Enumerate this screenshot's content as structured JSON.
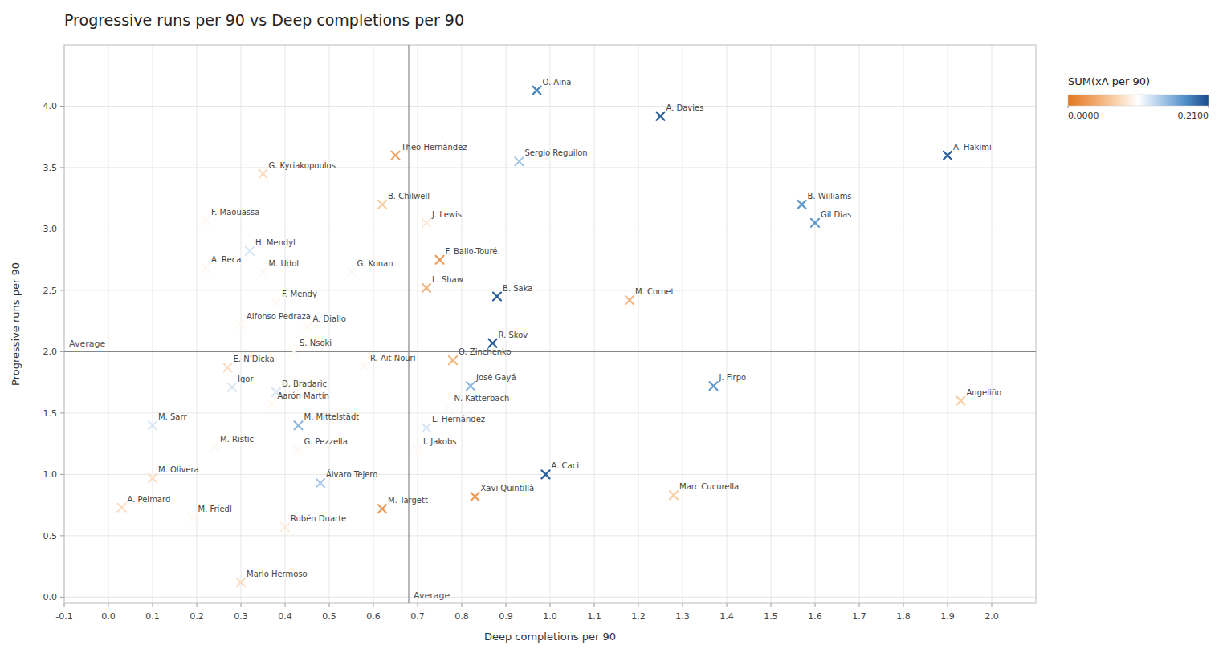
{
  "chart_data": {
    "type": "scatter",
    "title": "Progressive runs per 90 vs Deep completions per 90",
    "xlabel": "Deep completions per 90",
    "ylabel": "Progressive runs per 90",
    "grid": true,
    "marker": "x",
    "xlim": [
      -0.1,
      2.1
    ],
    "ylim": [
      -0.05,
      4.5
    ],
    "xticks": [
      -0.1,
      {
        "value": 0,
        "label": "0.0"
      },
      0.1,
      0.2,
      0.3,
      0.4,
      0.5,
      0.6,
      0.7,
      0.8,
      0.9,
      {
        "value": 1,
        "label": "1.0"
      },
      1.1,
      1.2,
      1.3,
      1.4,
      1.5,
      1.6,
      1.7,
      1.8,
      1.9,
      {
        "value": 2,
        "label": "2.0"
      }
    ],
    "yticks": [
      {
        "value": 0,
        "label": "0.0"
      },
      0.5,
      {
        "value": 1,
        "label": "1.0"
      },
      1.5,
      {
        "value": 2,
        "label": "2.0"
      },
      2.5,
      {
        "value": 3,
        "label": "3.0"
      },
      3.5,
      {
        "value": 4,
        "label": "4.0"
      }
    ],
    "averages": {
      "x": 0.68,
      "y": 2.0,
      "label": "Average"
    },
    "colorbar": {
      "title": "SUM(xA per 90)",
      "range": [
        0.0,
        0.21
      ],
      "ticks": [
        {
          "value": 0.0,
          "label": "0.0000"
        },
        {
          "value": 0.21,
          "label": "0.2100"
        }
      ],
      "colormap": [
        "#e07820",
        "#f0a060",
        "#f8d0a8",
        "#ffffff",
        "#a8c8e8",
        "#5090c8",
        "#1a4a8a"
      ]
    },
    "annotations": [
      "O. Aina",
      "A. Davies",
      "Theo Hernández",
      "Sergio Reguilon",
      "A. Hakimi",
      "G. Kyriakopoulos",
      "B. Chilwell",
      "B. Williams",
      "Gil Dias",
      "F. Maouassa",
      "J. Lewis",
      "H. Mendyl",
      "F. Ballo-Touré",
      "A. Reca",
      "M. Udol",
      "G. Konan",
      "L. Shaw",
      "B. Saka",
      "M. Cornet",
      "F. Mendy",
      "Alfonso Pedraza",
      "A. Diallo",
      "R. Skov",
      "S. Nsoki",
      "O. Zinchenko",
      "E. N’Dicka",
      "R. Aït Nouri",
      "José Gayá",
      "Igor",
      "D. Bradaric",
      "J. Firpo",
      "N. Katterbach",
      "Aarón Martín",
      "M. Sarr",
      "M. Mittelstädt",
      "L. Hernández",
      "M. Ristic",
      "G. Pezzella",
      "I. Jakobs",
      "Angeliño",
      "A. Caci",
      "M. Olivera",
      "Álvaro Tejero",
      "Xavi Quintillà",
      "Marc Cucurella",
      "A. Pelmard",
      "M. Friedl",
      "M. Targett",
      "Rubén Duarte",
      "Mario Hermoso"
    ],
    "x": [
      0.97,
      1.25,
      0.65,
      0.93,
      1.9,
      0.35,
      0.62,
      1.57,
      1.6,
      0.22,
      0.72,
      0.32,
      0.75,
      0.22,
      0.35,
      0.55,
      0.72,
      0.88,
      1.18,
      0.38,
      0.3,
      0.45,
      0.87,
      0.42,
      0.78,
      0.27,
      0.58,
      0.82,
      0.28,
      0.38,
      1.37,
      0.77,
      0.37,
      0.1,
      0.43,
      0.72,
      0.24,
      0.43,
      0.7,
      1.93,
      0.99,
      0.1,
      0.48,
      0.83,
      1.28,
      0.03,
      0.19,
      0.62,
      0.4,
      0.3
    ],
    "values": [
      4.13,
      3.92,
      3.6,
      3.55,
      3.6,
      3.45,
      3.2,
      3.2,
      3.05,
      3.07,
      3.05,
      2.82,
      2.75,
      2.68,
      2.65,
      2.65,
      2.52,
      2.45,
      2.42,
      2.4,
      2.22,
      2.2,
      2.07,
      2.0,
      1.93,
      1.87,
      1.88,
      1.72,
      1.71,
      1.67,
      1.72,
      1.55,
      1.57,
      1.4,
      1.4,
      1.38,
      1.22,
      1.2,
      1.2,
      1.6,
      1.0,
      0.97,
      0.93,
      0.82,
      0.83,
      0.73,
      0.65,
      0.72,
      0.57,
      0.12
    ],
    "color_values": [
      0.18,
      0.2,
      0.04,
      0.14,
      0.2,
      0.08,
      0.07,
      0.17,
      0.17,
      0.1,
      0.09,
      0.12,
      0.03,
      0.1,
      0.1,
      0.1,
      0.05,
      0.2,
      0.05,
      0.1,
      0.1,
      0.1,
      0.2,
      0.1,
      0.05,
      0.08,
      0.1,
      0.15,
      0.12,
      0.12,
      0.17,
      0.1,
      0.1,
      0.12,
      0.15,
      0.12,
      0.1,
      0.1,
      0.1,
      0.07,
      0.2,
      0.08,
      0.14,
      0.03,
      0.07,
      0.08,
      0.1,
      0.03,
      0.09,
      0.08
    ]
  }
}
